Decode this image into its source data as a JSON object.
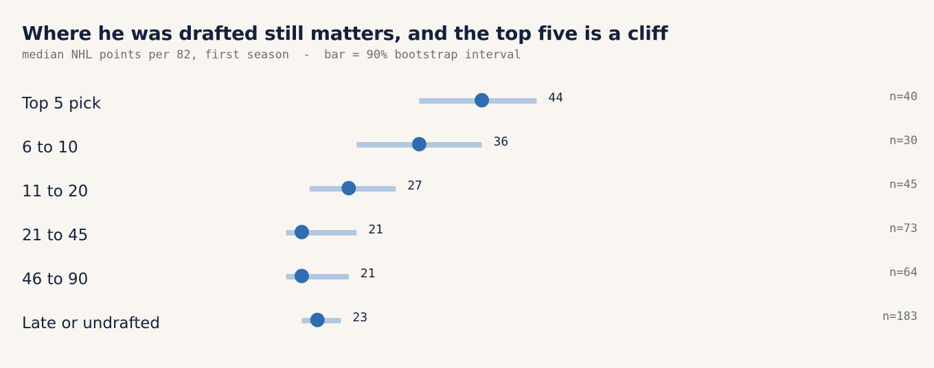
{
  "chart_data": {
    "type": "dot-interval",
    "title": "Where he was drafted still matters, and the top five is a cliff",
    "subtitle": "median NHL points per 82, first season  -  bar = 90% bootstrap interval",
    "xlim": [
      0,
      100
    ],
    "categories": [
      "Top 5 pick",
      "6 to 10",
      "11 to 20",
      "21 to 45",
      "46 to 90",
      "Late or undrafted"
    ],
    "median": [
      44,
      36,
      27,
      21,
      21,
      23
    ],
    "interval_low": [
      36,
      28,
      22,
      19,
      19,
      21
    ],
    "interval_high": [
      51,
      44,
      33,
      28,
      27,
      26
    ],
    "value_labels": [
      "44",
      "36",
      "27",
      "21",
      "21",
      "23"
    ],
    "n_labels": [
      "n=40",
      "n=30",
      "n=45",
      "n=73",
      "n=64",
      "n=183"
    ],
    "colors": {
      "dot": "#2f6cb0",
      "interval": "#b3c8e1",
      "text": "#14213d",
      "muted": "#6b6e76",
      "background": "#f9f6f1"
    }
  }
}
